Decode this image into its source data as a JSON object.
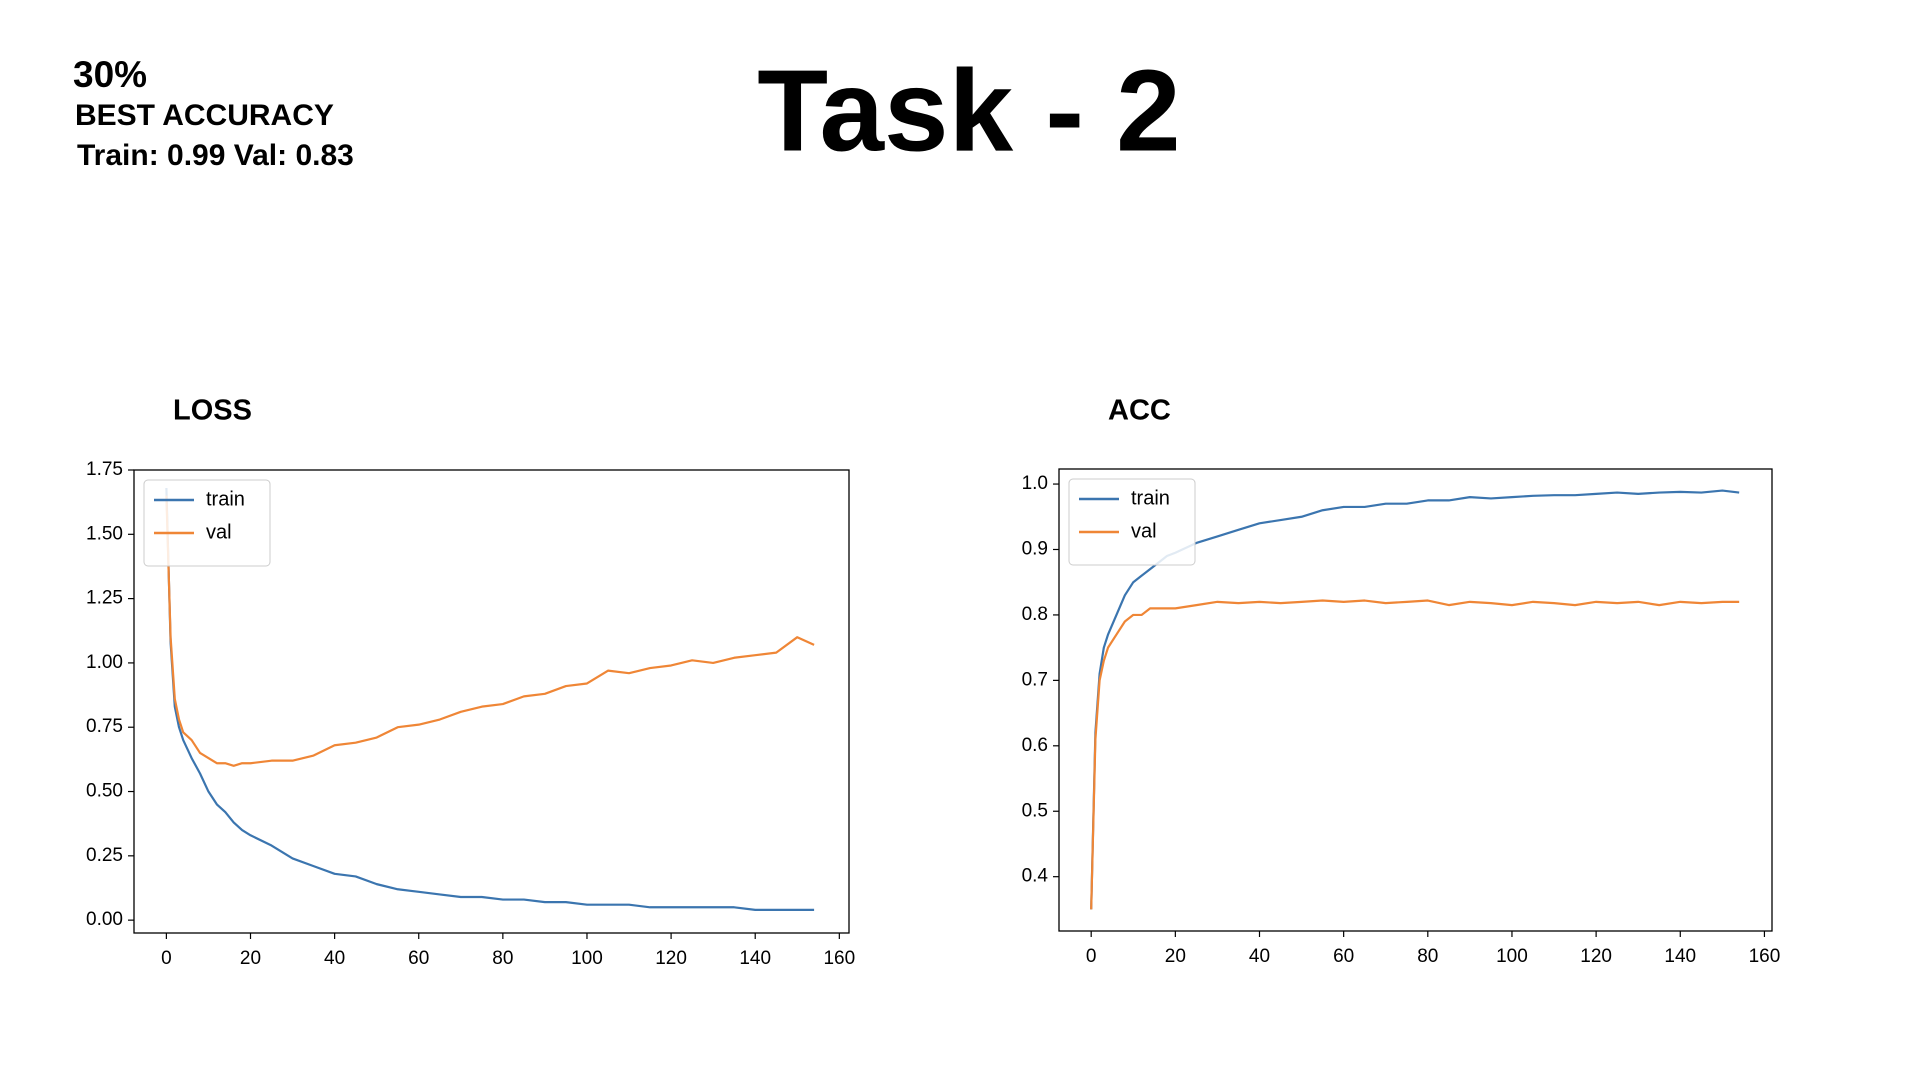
{
  "header": {
    "title": "Task - 2",
    "percent": "30%",
    "subtitle": "BEST ACCURACY",
    "summary": "Train: 0.99 Val: 0.83"
  },
  "chart_data": [
    {
      "type": "line",
      "title": "LOSS",
      "legend": "upper left",
      "x": [
        0,
        1,
        2,
        3,
        4,
        6,
        8,
        10,
        12,
        14,
        16,
        18,
        20,
        25,
        30,
        35,
        40,
        45,
        50,
        55,
        60,
        65,
        70,
        75,
        80,
        85,
        90,
        95,
        100,
        105,
        110,
        115,
        120,
        125,
        130,
        135,
        140,
        145,
        150,
        154
      ],
      "series": [
        {
          "name": "train",
          "color": "#3b75af",
          "values": [
            1.68,
            1.08,
            0.83,
            0.75,
            0.7,
            0.63,
            0.57,
            0.5,
            0.45,
            0.42,
            0.38,
            0.35,
            0.33,
            0.29,
            0.24,
            0.21,
            0.18,
            0.17,
            0.14,
            0.12,
            0.11,
            0.1,
            0.09,
            0.09,
            0.08,
            0.08,
            0.07,
            0.07,
            0.06,
            0.06,
            0.06,
            0.05,
            0.05,
            0.05,
            0.05,
            0.05,
            0.04,
            0.04,
            0.04,
            0.04
          ]
        },
        {
          "name": "val",
          "color": "#ef8636",
          "values": [
            1.65,
            1.1,
            0.86,
            0.78,
            0.73,
            0.7,
            0.65,
            0.63,
            0.61,
            0.61,
            0.6,
            0.61,
            0.61,
            0.62,
            0.62,
            0.64,
            0.68,
            0.69,
            0.71,
            0.75,
            0.76,
            0.78,
            0.81,
            0.83,
            0.84,
            0.87,
            0.88,
            0.91,
            0.92,
            0.97,
            0.96,
            0.98,
            0.99,
            1.01,
            1.0,
            1.02,
            1.03,
            1.04,
            1.1,
            1.07
          ]
        }
      ],
      "xlim": [
        -7.7,
        162.3
      ],
      "xticks": [
        0,
        20,
        40,
        60,
        80,
        100,
        120,
        140,
        160
      ],
      "ylim": [
        -0.05,
        1.75
      ],
      "yticks": [
        {
          "value": 0,
          "label": "0.00"
        },
        {
          "value": 0.25,
          "label": "0.25"
        },
        {
          "value": 0.5,
          "label": "0.50"
        },
        {
          "value": 0.75,
          "label": "0.75"
        },
        {
          "value": 1,
          "label": "1.00"
        },
        {
          "value": 1.25,
          "label": "1.25"
        },
        {
          "value": 1.5,
          "label": "1.50"
        },
        {
          "value": 1.75,
          "label": "1.75"
        }
      ]
    },
    {
      "type": "line",
      "title": "ACC",
      "legend": "upper left",
      "x": [
        0,
        1,
        2,
        3,
        4,
        6,
        8,
        10,
        12,
        14,
        16,
        18,
        20,
        25,
        30,
        35,
        40,
        45,
        50,
        55,
        60,
        65,
        70,
        75,
        80,
        85,
        90,
        95,
        100,
        105,
        110,
        115,
        120,
        125,
        130,
        135,
        140,
        145,
        150,
        154
      ],
      "series": [
        {
          "name": "train",
          "color": "#3b75af",
          "values": [
            0.35,
            0.62,
            0.71,
            0.75,
            0.77,
            0.8,
            0.83,
            0.85,
            0.86,
            0.87,
            0.88,
            0.89,
            0.895,
            0.91,
            0.92,
            0.93,
            0.94,
            0.945,
            0.95,
            0.96,
            0.965,
            0.965,
            0.97,
            0.97,
            0.975,
            0.975,
            0.98,
            0.978,
            0.98,
            0.982,
            0.983,
            0.983,
            0.985,
            0.987,
            0.985,
            0.987,
            0.988,
            0.987,
            0.99,
            0.987
          ]
        },
        {
          "name": "val",
          "color": "#ef8636",
          "values": [
            0.35,
            0.61,
            0.7,
            0.73,
            0.75,
            0.77,
            0.79,
            0.8,
            0.8,
            0.81,
            0.81,
            0.81,
            0.81,
            0.815,
            0.82,
            0.818,
            0.82,
            0.818,
            0.82,
            0.822,
            0.82,
            0.822,
            0.818,
            0.82,
            0.822,
            0.815,
            0.82,
            0.818,
            0.815,
            0.82,
            0.818,
            0.815,
            0.82,
            0.818,
            0.82,
            0.815,
            0.82,
            0.818,
            0.82,
            0.82
          ]
        }
      ],
      "xlim": [
        -7.65,
        161.8
      ],
      "xticks": [
        0,
        20,
        40,
        60,
        80,
        100,
        120,
        140,
        160
      ],
      "ylim": [
        0.317,
        1.023
      ],
      "yticks": [
        0.4,
        0.5,
        0.6,
        0.7,
        0.8,
        0.9,
        {
          "value": 1,
          "label": "1.0"
        }
      ]
    }
  ]
}
